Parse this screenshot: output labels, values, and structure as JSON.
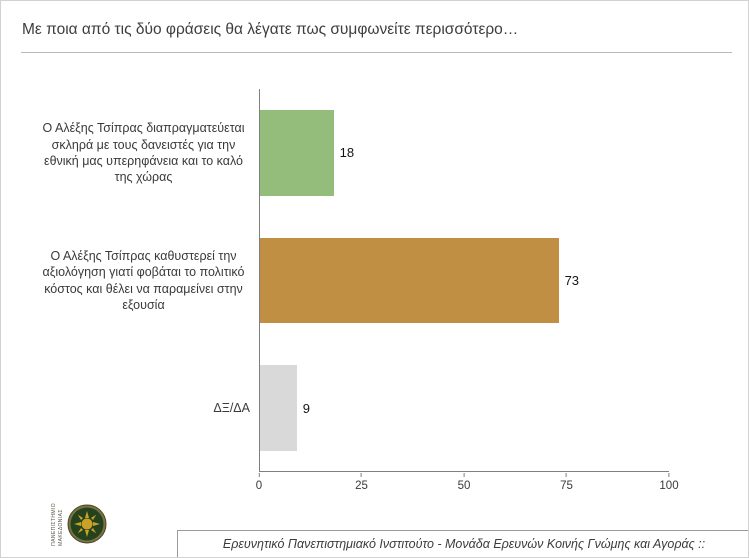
{
  "header": {
    "title": "Με ποια από τις δύο φράσεις θα λέγατε πως συμφωνείτε περισσότερο…"
  },
  "footer": {
    "text": "Ερευνητικό Πανεπιστημιακό Ινστιτούτο - Μονάδα Ερευνών Κοινής Γνώμης και Αγοράς ::"
  },
  "logo": {
    "line1": "ΠΑΝΕΠΙΣΤΗΜΙΟ",
    "line2": "ΜΑΚΕΔΟΝΙΑΣ"
  },
  "chart_data": {
    "type": "bar",
    "orientation": "horizontal",
    "title": "Με ποια από τις δύο φράσεις θα λέγατε πως συμφωνείτε περισσότερο…",
    "categories": [
      "Ο Αλέξης Τσίπρας διαπραγματεύεται σκληρά με τους δανειστές για την εθνική μας υπερηφάνεια και το καλό της χώρας",
      "Ο Αλέξης Τσίπρας καθυστερεί την αξιολόγηση γιατί φοβάται το πολιτικό κόστος και θέλει να παραμείνει στην εξουσία",
      "ΔΞ/ΔΑ"
    ],
    "values": [
      18,
      73,
      9
    ],
    "value_labels": [
      "18",
      "73",
      "9"
    ],
    "colors": [
      "#94bd7b",
      "#c08f44",
      "#d9d9d9"
    ],
    "xlim": [
      0,
      100
    ],
    "xticks": [
      0,
      25,
      50,
      75,
      100
    ],
    "grid": false,
    "legend": false
  }
}
